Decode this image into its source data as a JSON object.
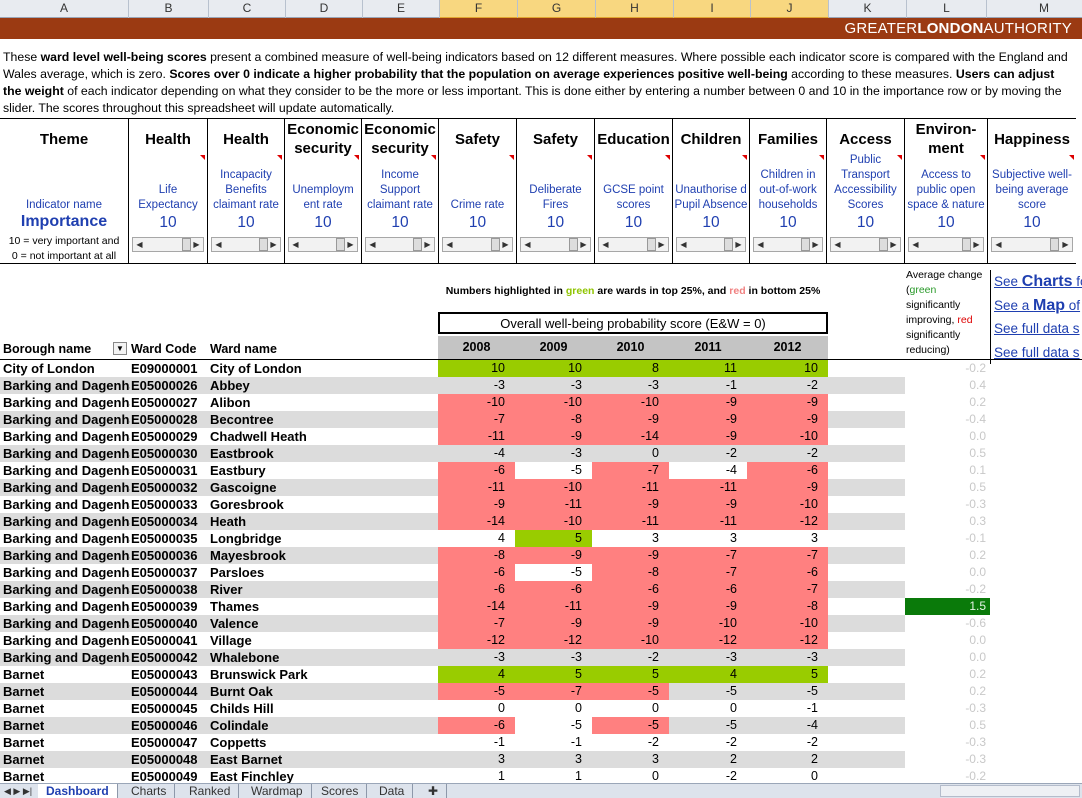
{
  "columns": [
    "A",
    "B",
    "C",
    "D",
    "E",
    "F",
    "G",
    "H",
    "I",
    "J",
    "K",
    "L",
    "M"
  ],
  "brand": {
    "light1": "GREATER",
    "bold": "LONDON",
    "light2": "AUTHORITY"
  },
  "intro": {
    "p1": "These ",
    "b1": "ward level well-being scores",
    "p2": " present a combined measure of well-being indicators based on 12 different measures. Where possible each indicator score is compared with the England and Wales average, which is zero. ",
    "b2": "Scores over 0 indicate a higher probability that the population on average experiences positive well-being",
    "p3": " according to these measures. ",
    "b3": "Users can adjust the weight",
    "p4": " of each indicator depending on what they consider to be the more or less important. This is done either by entering a number between 0 and 10 in the importance row or by moving the slider. The scores throughout this spreadsheet will update automatically."
  },
  "theme": {
    "heading": "Theme",
    "indicator_label": "Indicator name",
    "importance_label": "Importance",
    "note1": "10 = very important and",
    "note2": "0 = not important at all"
  },
  "indicators": [
    {
      "theme": "Health",
      "name": "Life Expectancy",
      "weight": "10"
    },
    {
      "theme": "Health",
      "name": "Incapacity Benefits claimant rate",
      "weight": "10"
    },
    {
      "theme": "Economic security",
      "name": "Unemploym ent rate",
      "weight": "10"
    },
    {
      "theme": "Economic security",
      "name": "Income Support claimant rate",
      "weight": "10"
    },
    {
      "theme": "Safety",
      "name": "Crime rate",
      "weight": "10"
    },
    {
      "theme": "Safety",
      "name": "Deliberate Fires",
      "weight": "10"
    },
    {
      "theme": "Education",
      "name": "GCSE point scores",
      "weight": "10"
    },
    {
      "theme": "Children",
      "name": "Unauthorise d Pupil Absence",
      "weight": "10"
    },
    {
      "theme": "Families",
      "name": "Children in out-of-work households",
      "weight": "10"
    },
    {
      "theme": "Access",
      "name": "Public Transport Accessibility Scores",
      "weight": "10"
    },
    {
      "theme": "Environ-ment",
      "name": "Access to public open space & nature",
      "weight": "10"
    },
    {
      "theme": "Happiness",
      "name": "Subjective well-being average score",
      "weight": "10"
    }
  ],
  "notes": {
    "highlight_pre": "Numbers highlighted in ",
    "green_word": "green",
    "highlight_mid": " are wards in top 25%, and ",
    "red_word": "red",
    "highlight_post": " in bottom 25%",
    "overall_title": "Overall well-being probability score (E&W = 0)"
  },
  "average_note": {
    "pre": "Average change (",
    "green": "green",
    "mid": " significantly improving, ",
    "red": "red",
    "post": " significantly reducing)"
  },
  "links": {
    "charts_pre": "See ",
    "charts_big": "Charts",
    "charts_post": " fo",
    "map_pre": "See a ",
    "map_big": "Map",
    "map_post": " of",
    "full1": "See full data s",
    "full2": "See full data s"
  },
  "table": {
    "headers": {
      "borough": "Borough name",
      "code": "Ward Code",
      "ward": "Ward name"
    },
    "years": [
      "2008",
      "2009",
      "2010",
      "2011",
      "2012"
    ],
    "rows": [
      {
        "borough": "City of London",
        "code": "E09000001",
        "ward": "City of London",
        "vals": [
          "10",
          "10",
          "8",
          "11",
          "10"
        ],
        "hl": [
          "g",
          "g",
          "g",
          "g",
          "g"
        ],
        "avg": "-0.2"
      },
      {
        "borough": "Barking and Dagenham",
        "code": "E05000026",
        "ward": "Abbey",
        "vals": [
          "-3",
          "-3",
          "-3",
          "-1",
          "-2"
        ],
        "hl": [
          "",
          "",
          "",
          "",
          ""
        ],
        "avg": "0.4"
      },
      {
        "borough": "Barking and Dagenham",
        "code": "E05000027",
        "ward": "Alibon",
        "vals": [
          "-10",
          "-10",
          "-10",
          "-9",
          "-9"
        ],
        "hl": [
          "r",
          "r",
          "r",
          "r",
          "r"
        ],
        "avg": "0.2"
      },
      {
        "borough": "Barking and Dagenham",
        "code": "E05000028",
        "ward": "Becontree",
        "vals": [
          "-7",
          "-8",
          "-9",
          "-9",
          "-9"
        ],
        "hl": [
          "r",
          "r",
          "r",
          "r",
          "r"
        ],
        "avg": "-0.4"
      },
      {
        "borough": "Barking and Dagenham",
        "code": "E05000029",
        "ward": "Chadwell Heath",
        "vals": [
          "-11",
          "-9",
          "-14",
          "-9",
          "-10"
        ],
        "hl": [
          "r",
          "r",
          "r",
          "r",
          "r"
        ],
        "avg": "0.0"
      },
      {
        "borough": "Barking and Dagenham",
        "code": "E05000030",
        "ward": "Eastbrook",
        "vals": [
          "-4",
          "-3",
          "0",
          "-2",
          "-2"
        ],
        "hl": [
          "",
          "",
          "",
          "",
          ""
        ],
        "avg": "0.5"
      },
      {
        "borough": "Barking and Dagenham",
        "code": "E05000031",
        "ward": "Eastbury",
        "vals": [
          "-6",
          "-5",
          "-7",
          "-4",
          "-6"
        ],
        "hl": [
          "r",
          "w",
          "r",
          "w",
          "r"
        ],
        "avg": "0.1"
      },
      {
        "borough": "Barking and Dagenham",
        "code": "E05000032",
        "ward": "Gascoigne",
        "vals": [
          "-11",
          "-10",
          "-11",
          "-11",
          "-9"
        ],
        "hl": [
          "r",
          "r",
          "r",
          "r",
          "r"
        ],
        "avg": "0.5"
      },
      {
        "borough": "Barking and Dagenham",
        "code": "E05000033",
        "ward": "Goresbrook",
        "vals": [
          "-9",
          "-11",
          "-9",
          "-9",
          "-10"
        ],
        "hl": [
          "r",
          "r",
          "r",
          "r",
          "r"
        ],
        "avg": "-0.3"
      },
      {
        "borough": "Barking and Dagenham",
        "code": "E05000034",
        "ward": "Heath",
        "vals": [
          "-14",
          "-10",
          "-11",
          "-11",
          "-12"
        ],
        "hl": [
          "r",
          "r",
          "r",
          "r",
          "r"
        ],
        "avg": "0.3"
      },
      {
        "borough": "Barking and Dagenham",
        "code": "E05000035",
        "ward": "Longbridge",
        "vals": [
          "4",
          "5",
          "3",
          "3",
          "3"
        ],
        "hl": [
          "w",
          "g",
          "",
          "",
          ""
        ],
        "avg": "-0.1"
      },
      {
        "borough": "Barking and Dagenham",
        "code": "E05000036",
        "ward": "Mayesbrook",
        "vals": [
          "-8",
          "-9",
          "-9",
          "-7",
          "-7"
        ],
        "hl": [
          "r",
          "r",
          "r",
          "r",
          "r"
        ],
        "avg": "0.2"
      },
      {
        "borough": "Barking and Dagenham",
        "code": "E05000037",
        "ward": "Parsloes",
        "vals": [
          "-6",
          "-5",
          "-8",
          "-7",
          "-6"
        ],
        "hl": [
          "r",
          "w",
          "r",
          "r",
          "r"
        ],
        "avg": "0.0"
      },
      {
        "borough": "Barking and Dagenham",
        "code": "E05000038",
        "ward": "River",
        "vals": [
          "-6",
          "-6",
          "-6",
          "-6",
          "-7"
        ],
        "hl": [
          "r",
          "r",
          "r",
          "r",
          "r"
        ],
        "avg": "-0.2"
      },
      {
        "borough": "Barking and Dagenham",
        "code": "E05000039",
        "ward": "Thames",
        "vals": [
          "-14",
          "-11",
          "-9",
          "-9",
          "-8"
        ],
        "hl": [
          "r",
          "r",
          "r",
          "r",
          "r"
        ],
        "avg": "1.5",
        "avg_hl": true
      },
      {
        "borough": "Barking and Dagenham",
        "code": "E05000040",
        "ward": "Valence",
        "vals": [
          "-7",
          "-9",
          "-9",
          "-10",
          "-10"
        ],
        "hl": [
          "r",
          "r",
          "r",
          "r",
          "r"
        ],
        "avg": "-0.6"
      },
      {
        "borough": "Barking and Dagenham",
        "code": "E05000041",
        "ward": "Village",
        "vals": [
          "-12",
          "-12",
          "-10",
          "-12",
          "-12"
        ],
        "hl": [
          "r",
          "r",
          "r",
          "r",
          "r"
        ],
        "avg": "0.0"
      },
      {
        "borough": "Barking and Dagenham",
        "code": "E05000042",
        "ward": "Whalebone",
        "vals": [
          "-3",
          "-3",
          "-2",
          "-3",
          "-3"
        ],
        "hl": [
          "",
          "",
          "",
          "",
          ""
        ],
        "avg": "0.0"
      },
      {
        "borough": "Barnet",
        "code": "E05000043",
        "ward": "Brunswick Park",
        "vals": [
          "4",
          "5",
          "5",
          "4",
          "5"
        ],
        "hl": [
          "g",
          "g",
          "g",
          "g",
          "g"
        ],
        "avg": "0.2"
      },
      {
        "borough": "Barnet",
        "code": "E05000044",
        "ward": "Burnt Oak",
        "vals": [
          "-5",
          "-7",
          "-5",
          "-5",
          "-5"
        ],
        "hl": [
          "r",
          "r",
          "r",
          "",
          ""
        ],
        "avg": "0.2"
      },
      {
        "borough": "Barnet",
        "code": "E05000045",
        "ward": "Childs Hill",
        "vals": [
          "0",
          "0",
          "0",
          "0",
          "-1"
        ],
        "hl": [
          "",
          "",
          "",
          "",
          ""
        ],
        "avg": "-0.3"
      },
      {
        "borough": "Barnet",
        "code": "E05000046",
        "ward": "Colindale",
        "vals": [
          "-6",
          "-5",
          "-5",
          "-5",
          "-4"
        ],
        "hl": [
          "r",
          "w",
          "r",
          "",
          ""
        ],
        "avg": "0.5"
      },
      {
        "borough": "Barnet",
        "code": "E05000047",
        "ward": "Coppetts",
        "vals": [
          "-1",
          "-1",
          "-2",
          "-2",
          "-2"
        ],
        "hl": [
          "",
          "",
          "",
          "",
          ""
        ],
        "avg": "-0.3"
      },
      {
        "borough": "Barnet",
        "code": "E05000048",
        "ward": "East Barnet",
        "vals": [
          "3",
          "3",
          "3",
          "2",
          "2"
        ],
        "hl": [
          "",
          "",
          "",
          "",
          ""
        ],
        "avg": "-0.3"
      },
      {
        "borough": "Barnet",
        "code": "E05000049",
        "ward": "East Finchley",
        "vals": [
          "1",
          "1",
          "0",
          "-2",
          "0"
        ],
        "hl": [
          "",
          "",
          "",
          "",
          ""
        ],
        "avg": "-0.2"
      }
    ]
  },
  "tabs": [
    "Dashboard",
    "Charts",
    "Ranked",
    "Wardmap",
    "Scores",
    "Data"
  ],
  "active_tab": "Dashboard",
  "colors": {
    "banner": "#9b3a12",
    "green": "#99cc00",
    "red": "#ff8080",
    "avg_up": "#0a7a0a",
    "link": "#1f3fb0"
  }
}
